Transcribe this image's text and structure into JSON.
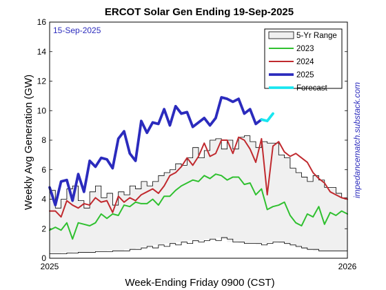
{
  "chart_data": {
    "type": "line",
    "title": "ERCOT Solar Gen Ending 19-Sep-2025",
    "xlabel": "Week-Ending Friday 0900 (CST)",
    "ylabel": "Weekly Avg Generation (GW)",
    "xlim": [
      0,
      52
    ],
    "ylim": [
      0,
      16
    ],
    "yticks": [
      0,
      2,
      4,
      6,
      8,
      10,
      12,
      14,
      16
    ],
    "xticks": [
      {
        "x": 0,
        "label": "2025"
      },
      {
        "x": 52,
        "label": "2026"
      }
    ],
    "annotation": "15-Sep-2025",
    "credit": "impedancematch.substack.com",
    "legend_position": "top-right",
    "colors": {
      "range_fill": "#f0f0f0",
      "range_edge": "#000000",
      "y2023": "#2fc02f",
      "y2024": "#c0292e",
      "y2025": "#2b2bbd",
      "forecast": "#19e6f0",
      "annotation": "#2b2bbd",
      "credit": "#2b2bbd"
    },
    "range": {
      "name": "5-Yr Range",
      "x": [
        0,
        1,
        2,
        3,
        4,
        5,
        6,
        7,
        8,
        9,
        10,
        11,
        12,
        13,
        14,
        15,
        16,
        17,
        18,
        19,
        20,
        21,
        22,
        23,
        24,
        25,
        26,
        27,
        28,
        29,
        30,
        31,
        32,
        33,
        34,
        35,
        36,
        37,
        38,
        39,
        40,
        41,
        42,
        43,
        44,
        45,
        46,
        47,
        48,
        49,
        50,
        51,
        52
      ],
      "upper": [
        4.6,
        3.4,
        4.0,
        4.7,
        4.9,
        3.9,
        3.4,
        4.5,
        4.9,
        4.1,
        4.4,
        3.6,
        4.5,
        4.3,
        4.9,
        4.7,
        5.2,
        4.9,
        5.2,
        5.6,
        5.8,
        6.0,
        6.4,
        6.3,
        6.8,
        7.5,
        6.8,
        7.3,
        8.0,
        8.1,
        7.4,
        8.0,
        7.4,
        8.2,
        8.3,
        7.9,
        7.5,
        7.9,
        7.8,
        7.8,
        7.0,
        6.8,
        6.1,
        5.8,
        5.5,
        5.2,
        5.6,
        5.3,
        4.8,
        4.8,
        4.4,
        4.1,
        4.1
      ],
      "lower": [
        0.3,
        0.3,
        0.3,
        0.35,
        0.35,
        0.4,
        0.4,
        0.4,
        0.45,
        0.45,
        0.45,
        0.5,
        0.5,
        0.5,
        0.6,
        0.6,
        0.7,
        0.8,
        0.7,
        0.9,
        0.8,
        1.0,
        0.9,
        1.1,
        1.0,
        1.2,
        1.1,
        1.2,
        1.3,
        1.2,
        1.4,
        1.3,
        1.1,
        1.1,
        1.0,
        1.0,
        1.0,
        0.9,
        1.0,
        1.1,
        1.1,
        1.0,
        0.9,
        0.8,
        0.7,
        0.6,
        0.6,
        0.5,
        0.5,
        0.5,
        0.5,
        0.5,
        0.5
      ]
    },
    "series": [
      {
        "name": "2023",
        "x": [
          0,
          1,
          2,
          3,
          4,
          5,
          6,
          7,
          8,
          9,
          10,
          11,
          12,
          13,
          14,
          15,
          16,
          17,
          18,
          19,
          20,
          21,
          22,
          23,
          24,
          25,
          26,
          27,
          28,
          29,
          30,
          31,
          32,
          33,
          34,
          35,
          36,
          37,
          38,
          39,
          40,
          41,
          42,
          43,
          44,
          45,
          46,
          47,
          48,
          49,
          50,
          51,
          52
        ],
        "y": [
          1.9,
          2.1,
          1.9,
          2.4,
          1.3,
          2.4,
          2.3,
          2.2,
          2.4,
          3.0,
          2.7,
          3.0,
          2.9,
          3.6,
          3.5,
          3.8,
          3.7,
          3.7,
          4.0,
          3.6,
          4.2,
          4.2,
          4.6,
          4.9,
          5.1,
          5.3,
          5.2,
          5.6,
          5.4,
          5.7,
          5.6,
          5.3,
          5.5,
          5.5,
          5.0,
          5.1,
          4.3,
          4.7,
          3.3,
          3.5,
          3.6,
          3.8,
          2.9,
          2.4,
          2.2,
          3.0,
          2.8,
          3.5,
          2.3,
          3.1,
          2.9,
          3.2,
          3.0
        ]
      },
      {
        "name": "2024",
        "x": [
          0,
          1,
          2,
          3,
          4,
          5,
          6,
          7,
          8,
          9,
          10,
          11,
          12,
          13,
          14,
          15,
          16,
          17,
          18,
          19,
          20,
          21,
          22,
          23,
          24,
          25,
          26,
          27,
          28,
          29,
          30,
          31,
          32,
          33,
          34,
          35,
          36,
          37,
          38,
          39,
          40,
          41,
          42,
          43,
          44,
          45,
          46,
          47,
          48,
          49,
          50,
          51,
          52
        ],
        "y": [
          3.2,
          3.2,
          2.8,
          3.9,
          3.6,
          3.4,
          3.7,
          3.6,
          4.1,
          3.8,
          3.9,
          3.1,
          4.2,
          3.8,
          4.1,
          3.9,
          4.3,
          4.5,
          4.7,
          4.4,
          4.9,
          5.6,
          5.8,
          6.2,
          6.8,
          6.3,
          6.9,
          7.8,
          6.9,
          7.1,
          8.0,
          8.0,
          7.1,
          8.2,
          8.0,
          7.4,
          6.5,
          8.1,
          4.3,
          7.6,
          7.9,
          7.2,
          6.9,
          7.1,
          6.8,
          6.5,
          5.8,
          5.4,
          5.1,
          4.5,
          4.3,
          4.1,
          4.0
        ]
      },
      {
        "name": "2025",
        "x": [
          0,
          1,
          2,
          3,
          4,
          5,
          6,
          7,
          8,
          9,
          10,
          11,
          12,
          13,
          14,
          15,
          16,
          17,
          18,
          19,
          20,
          21,
          22,
          23,
          24,
          25,
          26,
          27,
          28,
          29,
          30,
          31,
          32,
          33,
          34,
          35,
          36,
          37
        ],
        "y": [
          4.8,
          3.6,
          5.2,
          5.3,
          3.9,
          5.7,
          4.5,
          6.6,
          6.2,
          6.8,
          6.7,
          6.1,
          8.1,
          8.6,
          7.1,
          6.6,
          9.3,
          8.5,
          9.2,
          9.1,
          10.1,
          9.0,
          10.3,
          9.8,
          9.9,
          8.9,
          9.2,
          9.5,
          9.0,
          9.5,
          10.9,
          10.8,
          10.6,
          10.8,
          9.8,
          10.1,
          9.1,
          9.4
        ]
      },
      {
        "name": "Forecast",
        "x": [
          37,
          38,
          39
        ],
        "y": [
          9.4,
          9.3,
          9.8
        ]
      }
    ]
  }
}
